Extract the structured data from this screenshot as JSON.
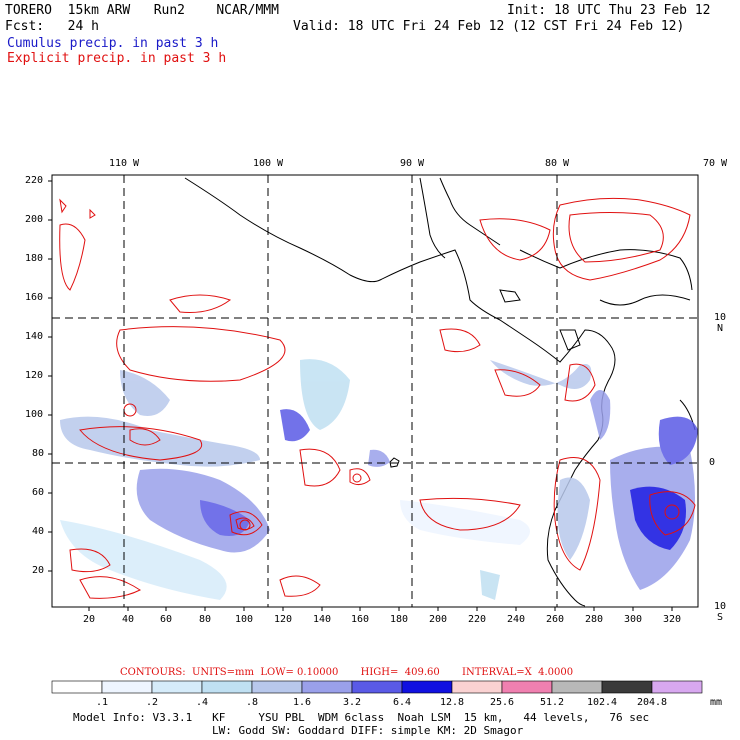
{
  "header": {
    "model": "TORERO  15km ARW   Run2    NCAR/MMM",
    "init": "Init: 18 UTC Thu 23 Feb 12",
    "fcst": "Fcst:   24 h",
    "valid": "Valid: 18 UTC Fri 24 Feb 12 (12 CST Fri 24 Feb 12)",
    "legend_cumulus": "Cumulus precip. in past 3 h",
    "legend_explicit": "Explicit precip. in past 3 h"
  },
  "colors": {
    "cumulus": "#1a1ac8",
    "explicit": "#e01010",
    "gridline": "#000000"
  },
  "axes": {
    "top_lon_labels": [
      "110 W",
      "100 W",
      "90 W",
      "80 W",
      "70 W"
    ],
    "right_lat_labels": [
      "10 N",
      "0",
      "10 S"
    ],
    "y_ticks": [
      "220",
      "200",
      "180",
      "160",
      "140",
      "120",
      "100",
      "80",
      "60",
      "40",
      "20"
    ],
    "x_ticks": [
      "20",
      "40",
      "60",
      "80",
      "100",
      "120",
      "140",
      "160",
      "180",
      "200",
      "220",
      "240",
      "260",
      "280",
      "300",
      "320"
    ]
  },
  "contours_line": "CONTOURS:  UNITS=mm  LOW= 0.10000       HIGH=  409.60       INTERVAL=X  4.0000",
  "colorbar": {
    "labels": [
      ".1",
      ".2",
      ".4",
      ".8",
      "1.6",
      "3.2",
      "6.4",
      "12.8",
      "25.6",
      "51.2",
      "102.4",
      "204.8"
    ],
    "unit": "mm",
    "colors": [
      "#ffffff",
      "#eef5ff",
      "#d6ecfa",
      "#c0e0f2",
      "#b8c8ec",
      "#9aa0ea",
      "#5a5ae6",
      "#1010e0",
      "#fad2d2",
      "#f080b0",
      "#b8b8b8",
      "#3a3a3a",
      "#d8a8f0"
    ]
  },
  "footer": {
    "line1": "Model Info: V3.3.1   KF     YSU PBL  WDM 6class  Noah LSM  15 km,   44 levels,   76 sec",
    "line2": "LW: Godd SW: Goddard DIFF: simple KM: 2D Smagor"
  }
}
